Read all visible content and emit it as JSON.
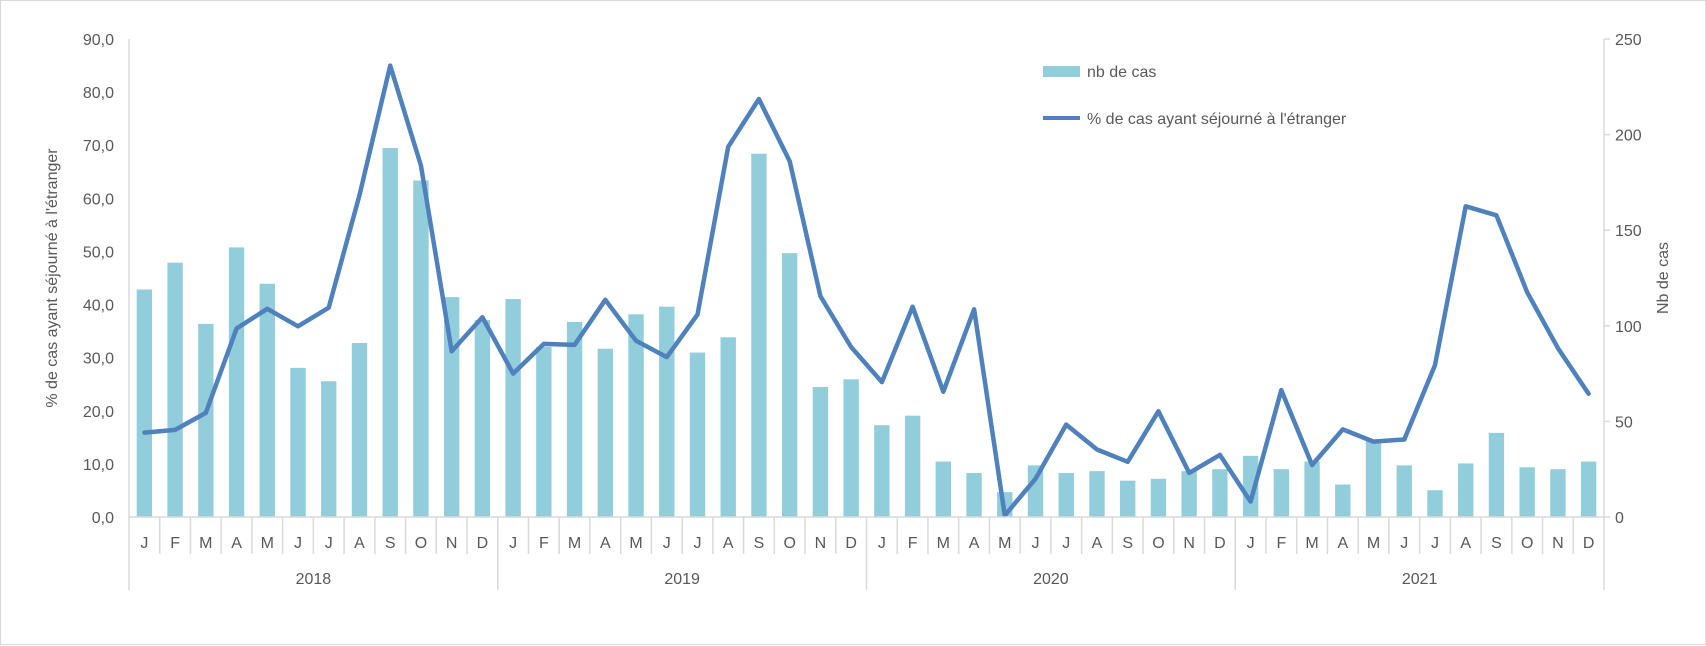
{
  "chart_data": {
    "type": "bar+line",
    "title": "",
    "years": [
      "2018",
      "2019",
      "2020",
      "2021"
    ],
    "months": [
      "J",
      "F",
      "M",
      "A",
      "M",
      "J",
      "J",
      "A",
      "S",
      "O",
      "N",
      "D"
    ],
    "ylabel_left": "% de cas ayant séjourné à l'étranger",
    "ylabel_right": "Nb de cas",
    "ylim_left": [
      0,
      90
    ],
    "ylim_right": [
      0,
      250
    ],
    "yticks_left": [
      "0,0",
      "10,0",
      "20,0",
      "30,0",
      "40,0",
      "50,0",
      "60,0",
      "70,0",
      "80,0",
      "90,0"
    ],
    "yticks_right": [
      "0",
      "50",
      "100",
      "150",
      "200",
      "250"
    ],
    "grid": false,
    "legend_position": "top-right",
    "colors": {
      "bars": "#92cddc",
      "line": "#4f81bd",
      "axis": "#d9d9d9",
      "text": "#595959"
    },
    "series": [
      {
        "name": "nb de cas",
        "type": "bar",
        "axis": "right",
        "values": [
          119,
          133,
          101,
          141,
          122,
          78,
          71,
          91,
          193,
          176,
          115,
          103,
          114,
          89,
          102,
          88,
          106,
          110,
          86,
          94,
          190,
          138,
          68,
          72,
          48,
          53,
          29,
          23,
          13,
          27,
          23,
          24,
          19,
          20,
          24,
          25,
          32,
          25,
          29,
          17,
          40,
          27,
          14,
          28,
          44,
          26,
          25,
          29
        ]
      },
      {
        "name": "% de cas ayant séjourné à l'étranger",
        "type": "line",
        "axis": "left",
        "values": [
          15.9,
          16.4,
          19.6,
          35.5,
          39.2,
          35.9,
          39.4,
          60.6,
          85.0,
          66.2,
          31.2,
          37.6,
          27.0,
          32.6,
          32.4,
          40.9,
          33.2,
          30.1,
          38.1,
          69.7,
          78.7,
          67.0,
          41.6,
          32.0,
          25.4,
          39.6,
          23.6,
          39.1,
          0.3,
          7.2,
          17.4,
          12.7,
          10.4,
          19.9,
          8.3,
          11.7,
          2.9,
          23.9,
          9.8,
          16.5,
          14.2,
          14.6,
          28.6,
          58.5,
          56.8,
          42.3,
          31.8,
          23.2
        ]
      }
    ]
  }
}
